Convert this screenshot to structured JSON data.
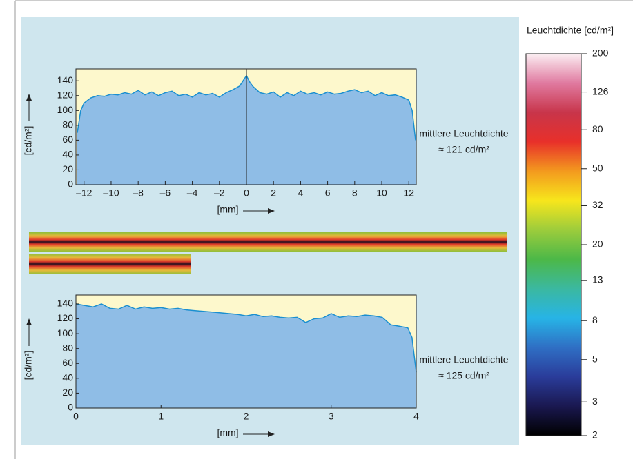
{
  "chart_data": [
    {
      "type": "area",
      "color": "#8fbde6",
      "line_color": "#1a8fd0",
      "background": "#fdf8cc",
      "ylabel": "[cd/m²]",
      "xlabel": "[mm]",
      "annotation": [
        "mittlere Leuchtdichte",
        "≈ 121 cd/m²"
      ],
      "xlim": [
        -12.6,
        12.55
      ],
      "ylim": [
        0,
        156
      ],
      "xticks": [
        {
          "value": -12,
          "label": "–12"
        },
        {
          "value": -10,
          "label": "–10"
        },
        {
          "value": -8,
          "label": "–8"
        },
        {
          "value": -6,
          "label": "–6"
        },
        {
          "value": -4,
          "label": "–4"
        },
        {
          "value": -2,
          "label": "–2"
        },
        0,
        2,
        4,
        6,
        8,
        10,
        12
      ],
      "yticks": [
        0,
        20,
        40,
        60,
        80,
        100,
        120,
        140
      ],
      "vline": 0,
      "x": [
        -12.5,
        -12.25,
        -12,
        -11.5,
        -11,
        -10.5,
        -10,
        -9.5,
        -9,
        -8.5,
        -8,
        -7.5,
        -7,
        -6.5,
        -6,
        -5.5,
        -5,
        -4.5,
        -4,
        -3.5,
        -3,
        -2.5,
        -2,
        -1.5,
        -1,
        -0.5,
        0,
        0.25,
        0.5,
        1,
        1.5,
        2,
        2.5,
        3,
        3.5,
        4,
        4.5,
        5,
        5.5,
        6,
        6.5,
        7,
        7.5,
        8,
        8.5,
        9,
        9.5,
        10,
        10.5,
        11,
        11.5,
        12,
        12.25,
        12.5
      ],
      "values": [
        70,
        100,
        110,
        117,
        120,
        119,
        122,
        121,
        124,
        122,
        127,
        121,
        125,
        120,
        124,
        126,
        120,
        122,
        118,
        124,
        121,
        123,
        118,
        124,
        128,
        133,
        147,
        138,
        132,
        124,
        122,
        125,
        118,
        124,
        120,
        126,
        122,
        124,
        121,
        125,
        122,
        123,
        126,
        128,
        124,
        126,
        120,
        124,
        120,
        121,
        118,
        114,
        100,
        60
      ]
    },
    {
      "type": "area",
      "color": "#8fbde6",
      "line_color": "#1a8fd0",
      "background": "#fdf8cc",
      "ylabel": "[cd/m²]",
      "xlabel": "[mm]",
      "annotation": [
        "mittlere Leuchtdichte",
        "≈ 125 cd/m²"
      ],
      "xlim": [
        0,
        4
      ],
      "ylim": [
        0,
        152
      ],
      "xticks": [
        0,
        1,
        2,
        3,
        4
      ],
      "yticks": [
        0,
        20,
        40,
        60,
        80,
        100,
        120,
        140
      ],
      "x": [
        0,
        0.1,
        0.2,
        0.3,
        0.4,
        0.5,
        0.6,
        0.7,
        0.8,
        0.9,
        1,
        1.1,
        1.2,
        1.3,
        1.4,
        1.5,
        1.6,
        1.7,
        1.8,
        1.9,
        2,
        2.1,
        2.2,
        2.3,
        2.4,
        2.5,
        2.6,
        2.7,
        2.8,
        2.9,
        3,
        3.1,
        3.2,
        3.3,
        3.4,
        3.5,
        3.6,
        3.7,
        3.8,
        3.9,
        3.95,
        4
      ],
      "values": [
        140,
        138,
        136,
        140,
        134,
        133,
        138,
        133,
        136,
        134,
        135,
        133,
        134,
        132,
        131,
        130,
        129,
        128,
        127,
        126,
        124,
        126,
        123,
        124,
        122,
        121,
        122,
        115,
        120,
        121,
        127,
        122,
        124,
        123,
        125,
        124,
        122,
        112,
        110,
        108,
        95,
        48
      ]
    },
    {
      "type": "colorbar",
      "title": "Leuchtdichte [cd/m²]",
      "log": true,
      "lim": [
        2,
        200
      ],
      "ticks": [
        200,
        126,
        80,
        50,
        32,
        20,
        13,
        8,
        5,
        3,
        2
      ],
      "colors": [
        "#000000",
        "#1a1850",
        "#2a3c9a",
        "#2f6fc4",
        "#27b4e6",
        "#3bb8a0",
        "#4cb848",
        "#9ccc3c",
        "#f7e61c",
        "#f39a1e",
        "#e8302a",
        "#c8354a",
        "#e07aa0",
        "#fbeef2"
      ]
    }
  ]
}
